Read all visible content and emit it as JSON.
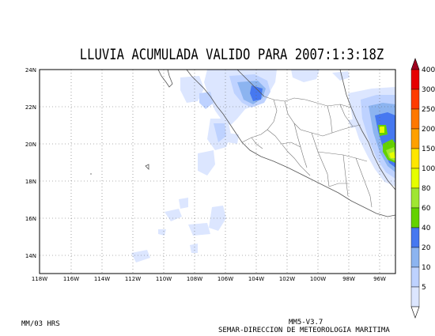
{
  "title": "LLUVIA ACUMULADA VALIDO PARA 2007:1:3:18Z",
  "lat_labels": [
    "24N",
    "22N",
    "20N",
    "18N",
    "16N",
    "14N"
  ],
  "lon_labels": [
    "118W",
    "116W",
    "114W",
    "112W",
    "110W",
    "108W",
    "106W",
    "104W",
    "102W",
    "100W",
    "98W",
    "96W"
  ],
  "colorbar": {
    "levels": [
      "400",
      "300",
      "250",
      "200",
      "150",
      "100",
      "80",
      "60",
      "40",
      "20",
      "10",
      "5"
    ],
    "colors": [
      "#a0001e",
      "#e60000",
      "#ff3c00",
      "#ff7800",
      "#ffa000",
      "#ffe600",
      "#e6ff00",
      "#a0e632",
      "#64d200",
      "#4678f0",
      "#8cb4f0",
      "#bed2ff",
      "#dce6ff"
    ]
  },
  "footer": {
    "units": "MM/03 HRS",
    "model": "MM5-V3.7",
    "organization": "SEMAR-DIRECCION DE METEOROLOGIA MARITIMA"
  }
}
